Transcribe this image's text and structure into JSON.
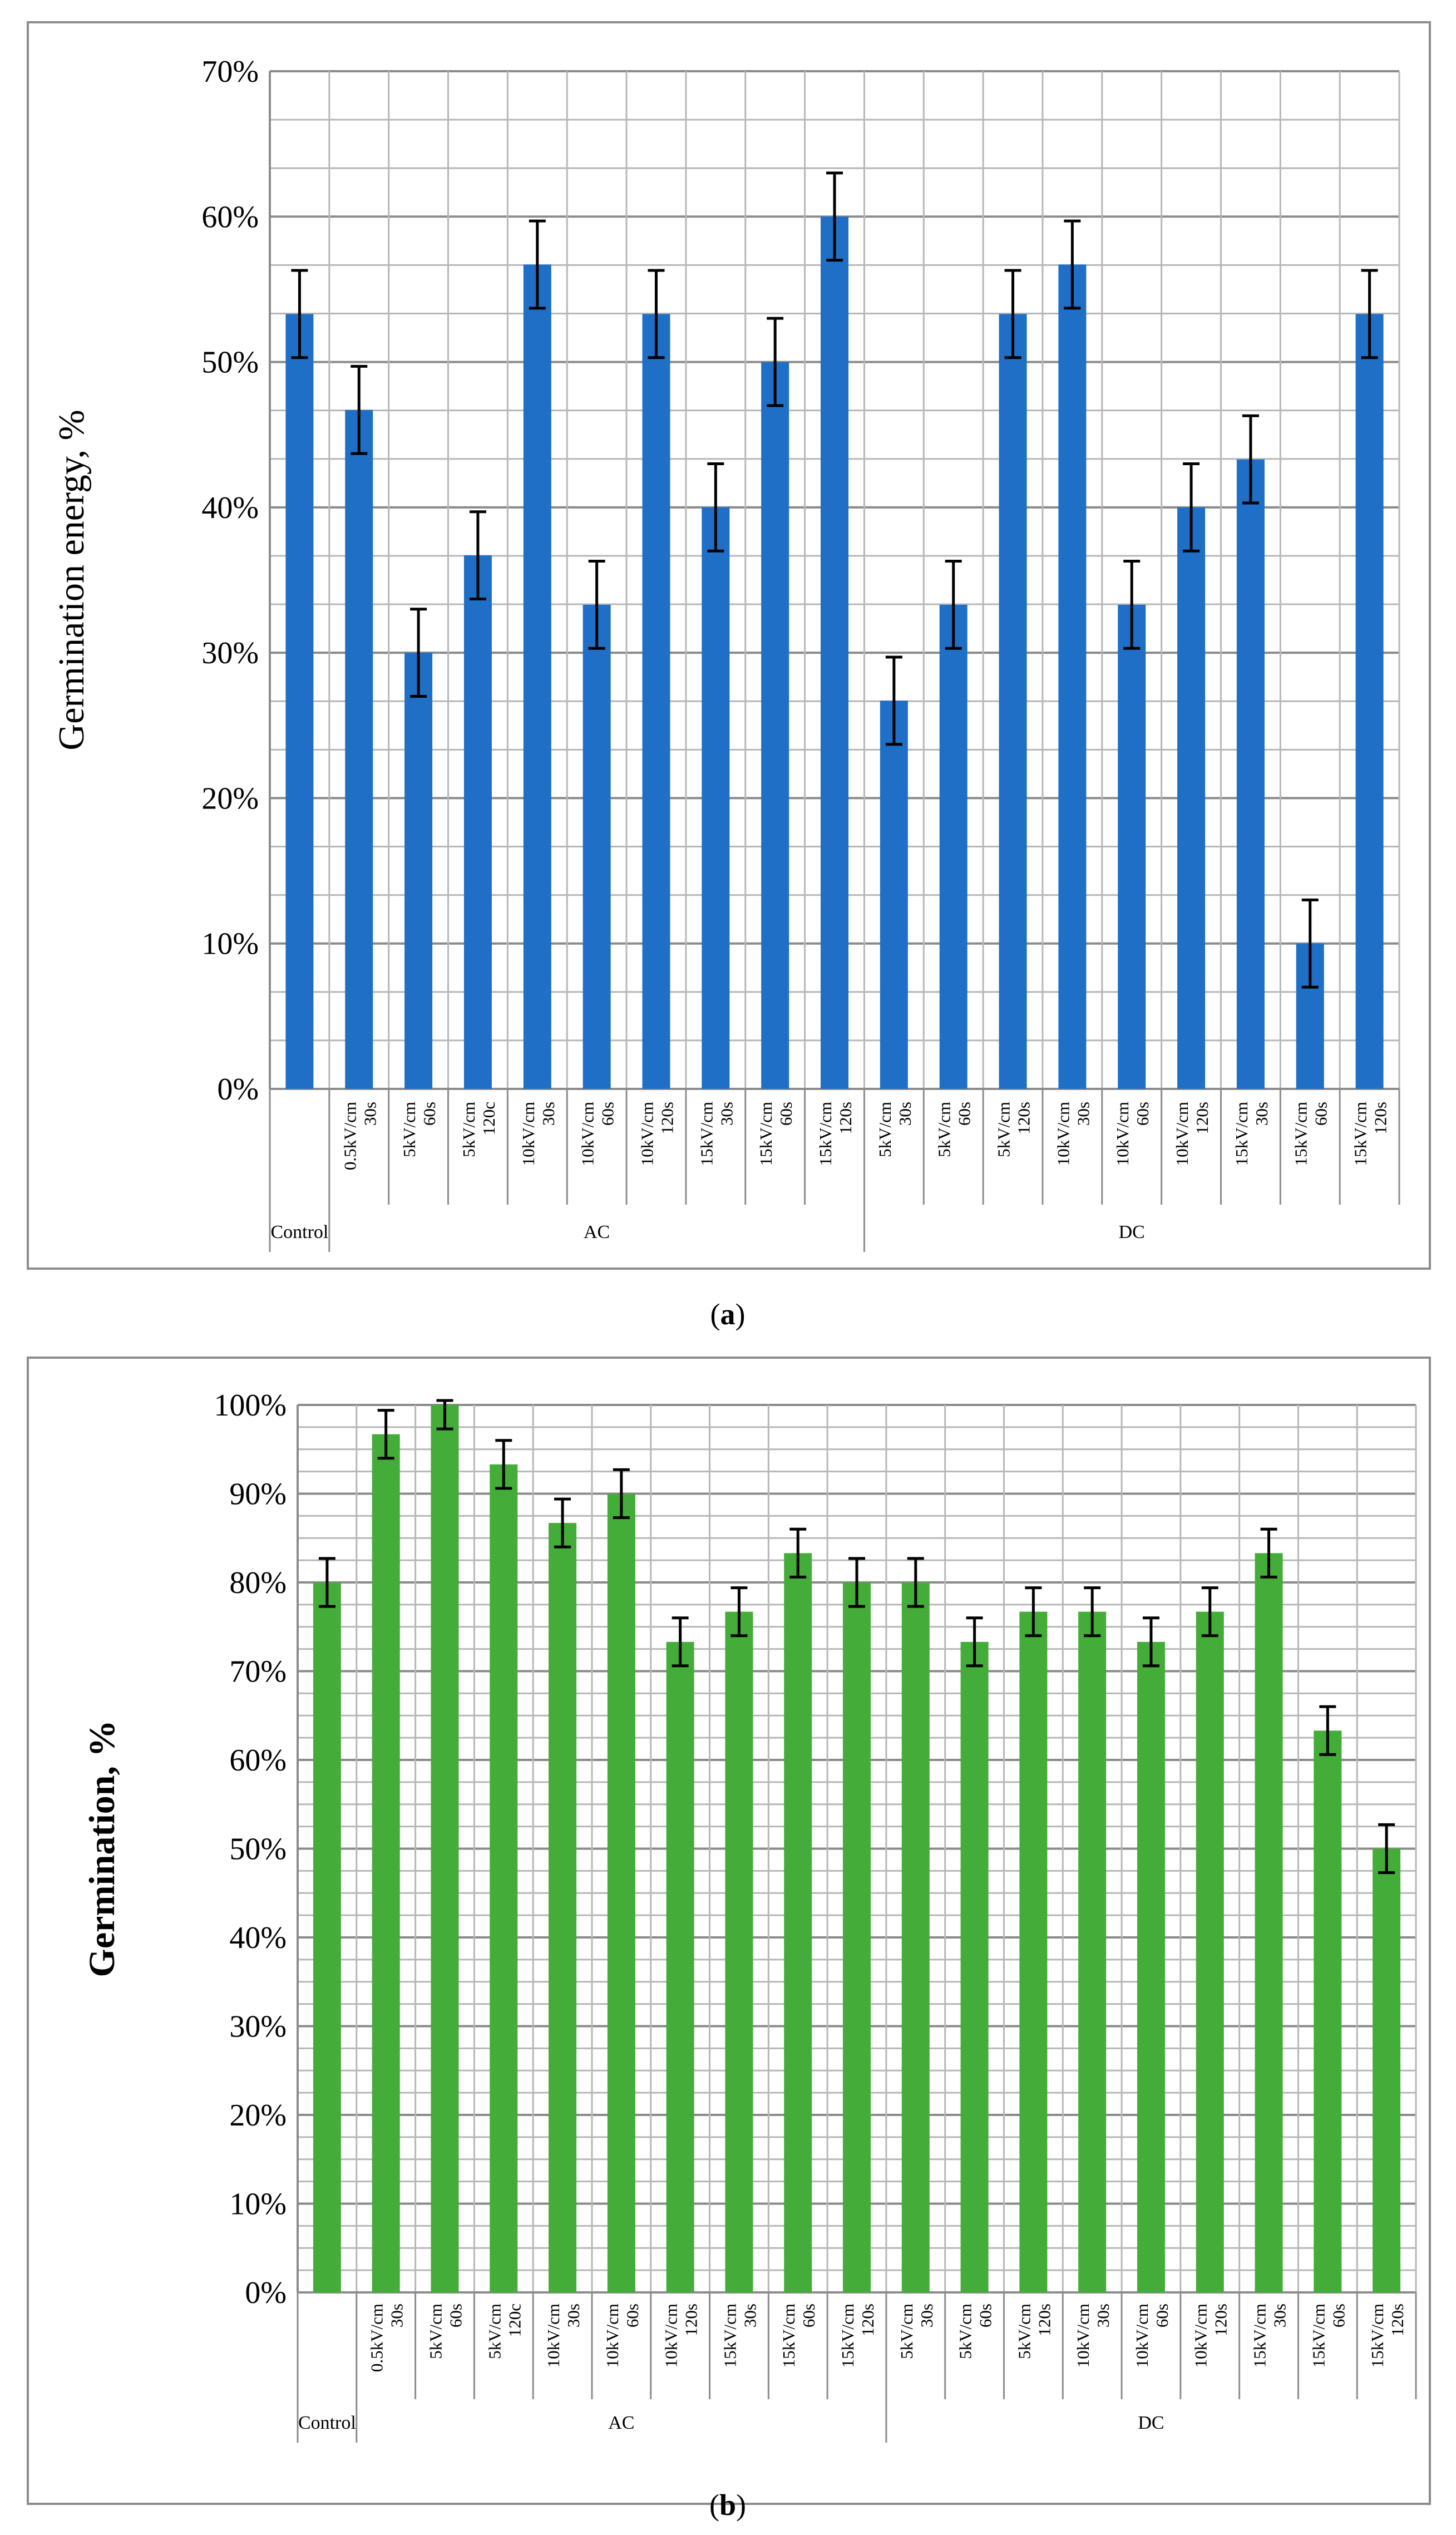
{
  "chart_data": [
    {
      "panel": "a",
      "type": "bar",
      "title": "",
      "xlabel": "",
      "ylabel": "Germination energy, %",
      "ylim": [
        0,
        70
      ],
      "yticks": [
        "0%",
        "10%",
        "20%",
        "30%",
        "40%",
        "50%",
        "60%",
        "70%"
      ],
      "grid": true,
      "legend": "none",
      "bar_color": "#1f6fc6",
      "categories": [
        {
          "line1": "",
          "line2": ""
        },
        {
          "line1": "0.5kV/cm",
          "line2": "30s"
        },
        {
          "line1": "5kV/cm",
          "line2": "60s"
        },
        {
          "line1": "5kV/cm",
          "line2": "120c"
        },
        {
          "line1": "10kV/cm",
          "line2": "30s"
        },
        {
          "line1": "10kV/cm",
          "line2": "60s"
        },
        {
          "line1": "10kV/cm",
          "line2": "120s"
        },
        {
          "line1": "15kV/cm",
          "line2": "30s"
        },
        {
          "line1": "15kV/cm",
          "line2": "60s"
        },
        {
          "line1": "15kV/cm",
          "line2": "120s"
        },
        {
          "line1": "5kV/cm",
          "line2": "30s"
        },
        {
          "line1": "5kV/cm",
          "line2": "60s"
        },
        {
          "line1": "5kV/cm",
          "line2": "120s"
        },
        {
          "line1": "10kV/cm",
          "line2": "30s"
        },
        {
          "line1": "10kV/cm",
          "line2": "60s"
        },
        {
          "line1": "10kV/cm",
          "line2": "120s"
        },
        {
          "line1": "15kV/cm",
          "line2": "30s"
        },
        {
          "line1": "15kV/cm",
          "line2": "60s"
        },
        {
          "line1": "15kV/cm",
          "line2": "120s"
        }
      ],
      "groups": [
        {
          "label": "Control",
          "start": 0,
          "end": 0
        },
        {
          "label": "AC",
          "start": 1,
          "end": 9
        },
        {
          "label": "DC",
          "start": 10,
          "end": 18
        }
      ],
      "values": [
        53.3,
        46.7,
        30.0,
        36.7,
        56.7,
        33.3,
        53.3,
        40.0,
        50.0,
        60.0,
        26.7,
        33.3,
        53.3,
        56.7,
        33.3,
        40.0,
        43.3,
        10.0,
        53.3
      ],
      "error": [
        3,
        3,
        3,
        3,
        3,
        3,
        3,
        3,
        3,
        3,
        3,
        3,
        3,
        3,
        3,
        3,
        3,
        3,
        3
      ]
    },
    {
      "panel": "b",
      "type": "bar",
      "title": "",
      "xlabel": "",
      "ylabel": "Germination, %",
      "ylim": [
        0,
        100
      ],
      "yticks": [
        "0%",
        "10%",
        "20%",
        "30%",
        "40%",
        "50%",
        "60%",
        "70%",
        "80%",
        "90%",
        "100%"
      ],
      "grid": true,
      "legend": "none",
      "bar_color": "#44ac38",
      "categories": [
        {
          "line1": "",
          "line2": ""
        },
        {
          "line1": "0.5kV/cm",
          "line2": "30s"
        },
        {
          "line1": "5kV/cm",
          "line2": "60s"
        },
        {
          "line1": "5kV/cm",
          "line2": "120c"
        },
        {
          "line1": "10kV/cm",
          "line2": "30s"
        },
        {
          "line1": "10kV/cm",
          "line2": "60s"
        },
        {
          "line1": "10kV/cm",
          "line2": "120s"
        },
        {
          "line1": "15kV/cm",
          "line2": "30s"
        },
        {
          "line1": "15kV/cm",
          "line2": "60s"
        },
        {
          "line1": "15kV/cm",
          "line2": "120s"
        },
        {
          "line1": "5kV/cm",
          "line2": "30s"
        },
        {
          "line1": "5kV/cm",
          "line2": "60s"
        },
        {
          "line1": "5kV/cm",
          "line2": "120s"
        },
        {
          "line1": "10kV/cm",
          "line2": "30s"
        },
        {
          "line1": "10kV/cm",
          "line2": "60s"
        },
        {
          "line1": "10kV/cm",
          "line2": "120s"
        },
        {
          "line1": "15kV/cm",
          "line2": "30s"
        },
        {
          "line1": "15kV/cm",
          "line2": "60s"
        },
        {
          "line1": "15kV/cm",
          "line2": "120s"
        }
      ],
      "groups": [
        {
          "label": "Control",
          "start": 0,
          "end": 0
        },
        {
          "label": "AC",
          "start": 1,
          "end": 9
        },
        {
          "label": "DC",
          "start": 10,
          "end": 18
        }
      ],
      "values": [
        80.0,
        96.7,
        100.0,
        93.3,
        86.7,
        90.0,
        73.3,
        76.7,
        83.3,
        80.0,
        80.0,
        73.3,
        76.7,
        76.7,
        73.3,
        76.7,
        83.3,
        63.3,
        50.0
      ],
      "error": [
        2.7,
        2.7,
        2.7,
        2.7,
        2.7,
        2.7,
        2.7,
        2.7,
        2.7,
        2.7,
        2.7,
        2.7,
        2.7,
        2.7,
        2.7,
        2.7,
        2.7,
        2.7,
        2.7
      ]
    }
  ],
  "panel_labels": [
    {
      "open": "(",
      "letter": "a",
      "close": ")"
    },
    {
      "open": "(",
      "letter": "b",
      "close": ")"
    }
  ]
}
